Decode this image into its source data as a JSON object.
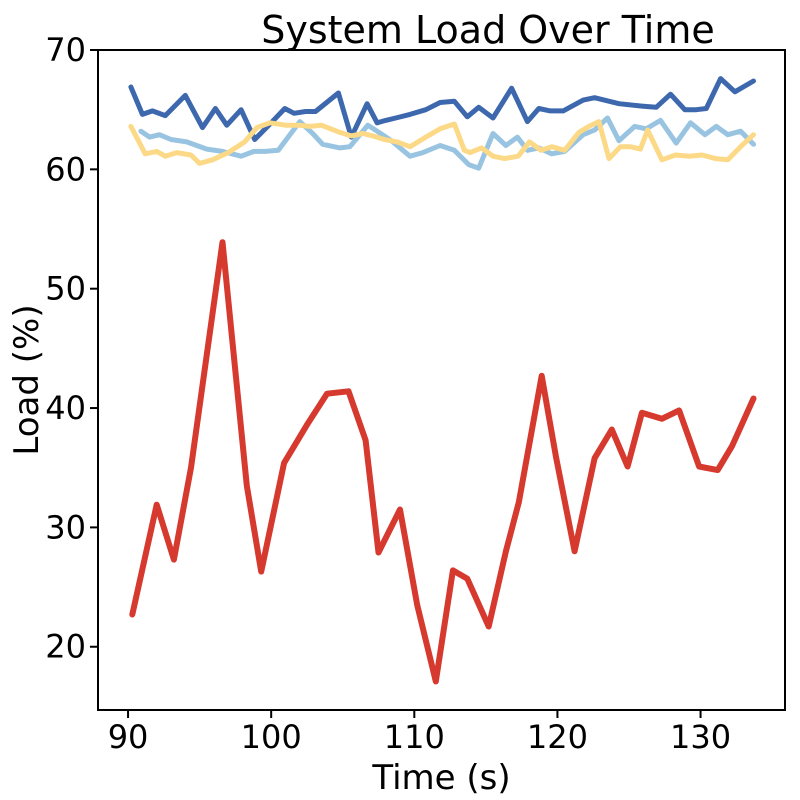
{
  "figure": {
    "background": "#ffffff"
  },
  "chart_data": {
    "type": "line",
    "title": "System Load Over Time",
    "xlabel": "Time (s)",
    "ylabel": "Load (%)",
    "xlim": [
      87.9,
      135.9
    ],
    "ylim": [
      14.7,
      70.0
    ],
    "xticks": [
      90,
      100,
      110,
      120,
      130
    ],
    "yticks": [
      20,
      30,
      40,
      50,
      60,
      70
    ],
    "grid": false,
    "legend": false,
    "axes_color": "#000000",
    "series": [
      {
        "id": "load-series-dark-blue",
        "color": "#3d68ae",
        "line_width": 5,
        "x": [
          90.2,
          91.0,
          91.7,
          92.6,
          94.0,
          95.2,
          96.1,
          96.9,
          97.9,
          98.85,
          100.0,
          100.95,
          101.6,
          102.4,
          103.1,
          104.7,
          105.6,
          106.7,
          107.4,
          108.0,
          108.7,
          109.7,
          110.8,
          111.8,
          112.8,
          113.7,
          114.5,
          115.5,
          116.8,
          117.9,
          118.7,
          119.5,
          120.4,
          121.8,
          122.6,
          124.3,
          125.9,
          126.9,
          127.9,
          128.9,
          129.7,
          130.4,
          131.4,
          132.4,
          133.7
        ],
        "y": [
          66.9,
          64.6,
          64.9,
          64.5,
          66.2,
          63.5,
          65.1,
          63.7,
          65.0,
          62.5,
          63.9,
          65.1,
          64.7,
          64.85,
          64.85,
          66.4,
          62.7,
          65.5,
          63.9,
          64.1,
          64.3,
          64.6,
          65.0,
          65.6,
          65.7,
          64.4,
          65.2,
          64.3,
          66.8,
          64.0,
          65.1,
          64.9,
          64.9,
          65.8,
          66.0,
          65.5,
          65.3,
          65.2,
          66.3,
          65.0,
          65.0,
          65.1,
          67.6,
          66.5,
          67.4
        ]
      },
      {
        "id": "load-series-light-blue",
        "color": "#99c4e1",
        "line_width": 5,
        "x": [
          90.9,
          91.5,
          92.2,
          93.0,
          94.1,
          95.5,
          96.6,
          97.9,
          98.8,
          99.6,
          100.5,
          102.0,
          102.9,
          103.6,
          104.8,
          105.5,
          106.75,
          107.4,
          108.4,
          109.7,
          110.6,
          111.8,
          112.8,
          113.8,
          114.5,
          115.5,
          116.4,
          117.2,
          117.9,
          118.7,
          119.6,
          120.5,
          121.8,
          122.6,
          123.5,
          124.3,
          125.4,
          126.2,
          127.2,
          128.3,
          129.3,
          130.3,
          131.1,
          131.9,
          132.8,
          133.7
        ],
        "y": [
          63.2,
          62.7,
          62.9,
          62.5,
          62.3,
          61.7,
          61.5,
          61.1,
          61.5,
          61.5,
          61.6,
          64.0,
          63.0,
          62.1,
          61.8,
          61.9,
          63.7,
          63.2,
          62.4,
          61.1,
          61.4,
          62.0,
          61.6,
          60.4,
          60.1,
          63.0,
          62.0,
          62.7,
          61.6,
          61.8,
          61.3,
          61.5,
          62.9,
          63.3,
          64.3,
          62.4,
          63.6,
          63.4,
          64.1,
          62.2,
          63.9,
          62.9,
          63.6,
          62.9,
          63.2,
          62.1
        ]
      },
      {
        "id": "load-series-yellow",
        "color": "#fcd986",
        "line_width": 5,
        "x": [
          90.2,
          91.2,
          92.0,
          92.6,
          93.4,
          94.4,
          95.0,
          95.9,
          97.0,
          98.15,
          99.0,
          99.9,
          101.0,
          101.9,
          102.7,
          103.5,
          104.8,
          105.6,
          106.4,
          107.1,
          107.9,
          108.8,
          109.7,
          110.8,
          111.8,
          112.8,
          113.5,
          113.9,
          114.7,
          115.5,
          116.3,
          117.25,
          118.05,
          118.85,
          119.6,
          120.5,
          121.5,
          122.2,
          122.9,
          123.6,
          124.4,
          125.1,
          125.8,
          126.3,
          127.3,
          128.25,
          129.2,
          130.1,
          131.05,
          131.9,
          132.8,
          133.7
        ],
        "y": [
          63.6,
          61.3,
          61.5,
          61.1,
          61.4,
          61.2,
          60.5,
          60.8,
          61.4,
          62.3,
          63.5,
          63.9,
          63.7,
          63.7,
          63.6,
          63.7,
          63.1,
          62.8,
          63.0,
          62.8,
          62.5,
          62.3,
          61.9,
          62.7,
          63.4,
          63.8,
          61.6,
          61.4,
          61.8,
          61.1,
          60.9,
          61.1,
          62.3,
          61.6,
          61.9,
          61.6,
          63.1,
          63.6,
          64.0,
          60.9,
          61.9,
          61.9,
          61.7,
          63.3,
          60.8,
          61.2,
          61.1,
          61.2,
          60.9,
          60.8,
          61.9,
          62.9
        ]
      },
      {
        "id": "load-series-red",
        "color": "#d6392e",
        "line_width": 6,
        "x": [
          90.3,
          92.0,
          93.2,
          94.4,
          96.6,
          98.3,
          99.3,
          100.9,
          102.5,
          103.9,
          105.4,
          106.6,
          107.5,
          109.0,
          110.2,
          111.5,
          112.7,
          113.7,
          115.2,
          116.4,
          117.3,
          118.9,
          119.9,
          121.2,
          122.6,
          123.8,
          124.9,
          125.9,
          127.3,
          128.5,
          129.9,
          131.2,
          132.2,
          133.7
        ],
        "y": [
          22.7,
          31.9,
          27.3,
          35.0,
          53.9,
          33.5,
          26.3,
          35.4,
          38.6,
          41.2,
          41.4,
          37.3,
          27.9,
          31.5,
          23.5,
          17.1,
          26.4,
          25.7,
          21.7,
          28.0,
          32.1,
          42.7,
          35.9,
          28.0,
          35.8,
          38.2,
          35.1,
          39.6,
          39.1,
          39.8,
          35.1,
          34.8,
          36.8,
          40.8
        ]
      }
    ]
  }
}
